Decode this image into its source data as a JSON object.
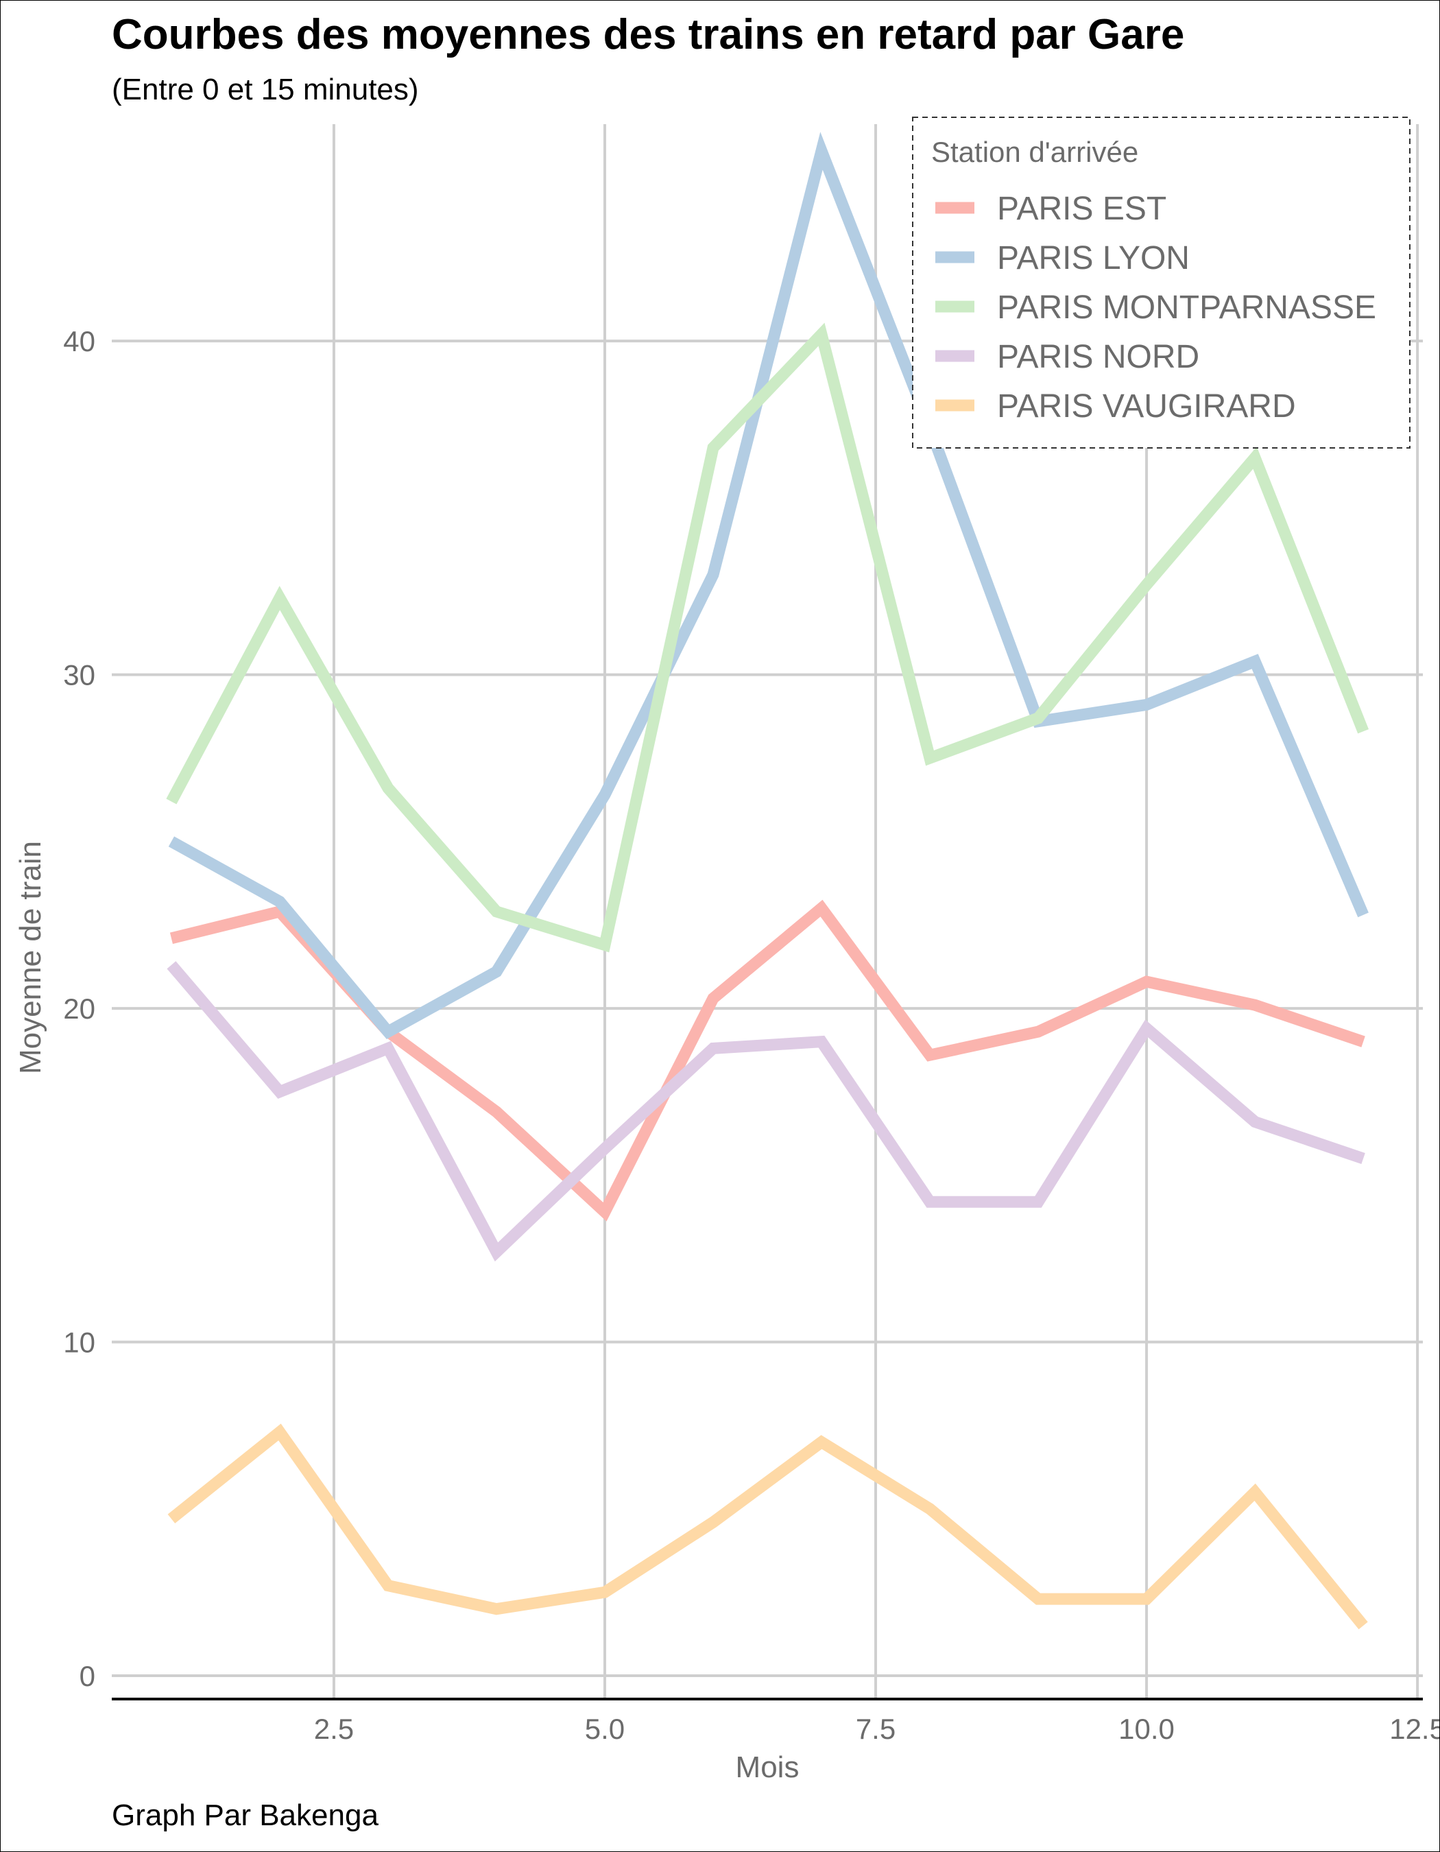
{
  "chart_data": {
    "type": "line",
    "title": "Courbes des moyennes des trains en retard par Gare",
    "subtitle": "(Entre 0 et 15 minutes)",
    "xlabel": "Mois",
    "ylabel": "Moyenne de train",
    "caption": "Graph Par Bakenga",
    "xlim": [
      0.45,
      12.55
    ],
    "ylim": [
      -0.7,
      46.5
    ],
    "x_ticks": [
      2.5,
      5.0,
      7.5,
      10.0,
      12.5
    ],
    "x_tick_labels": [
      "2.5",
      "5.0",
      "7.5",
      "10.0",
      "12.5"
    ],
    "y_ticks": [
      0,
      10,
      20,
      30,
      40
    ],
    "y_tick_labels": [
      "0",
      "10",
      "20",
      "30",
      "40"
    ],
    "grid": true,
    "legend": {
      "title": "Station d'arrivée",
      "position": "top-right"
    },
    "x": [
      1,
      2,
      3,
      4,
      5,
      6,
      7,
      8,
      9,
      10,
      11,
      12
    ],
    "series": [
      {
        "name": "PARIS EST",
        "color": "#fbb4ae",
        "values": [
          22.1,
          22.9,
          19.3,
          16.9,
          13.9,
          20.3,
          23.0,
          18.6,
          19.3,
          20.8,
          20.1,
          19.0
        ]
      },
      {
        "name": "PARIS LYON",
        "color": "#b3cde3",
        "values": [
          25.0,
          23.2,
          19.3,
          21.1,
          26.4,
          33.0,
          45.7,
          37.4,
          28.6,
          29.1,
          30.4,
          22.8
        ]
      },
      {
        "name": "PARIS MONTPARNASSE",
        "color": "#ccebc5",
        "values": [
          26.2,
          32.3,
          26.6,
          22.9,
          21.9,
          36.8,
          40.2,
          27.5,
          28.7,
          32.7,
          36.5,
          28.3
        ]
      },
      {
        "name": "PARIS NORD",
        "color": "#decbe4",
        "values": [
          21.3,
          17.5,
          18.8,
          12.7,
          15.8,
          18.8,
          19.0,
          14.2,
          14.2,
          19.4,
          16.6,
          15.5
        ]
      },
      {
        "name": "PARIS VAUGIRARD",
        "color": "#fed9a6",
        "values": [
          4.7,
          7.3,
          2.7,
          2.0,
          2.5,
          4.6,
          7.0,
          5.0,
          2.3,
          2.3,
          5.5,
          1.5
        ]
      }
    ]
  }
}
